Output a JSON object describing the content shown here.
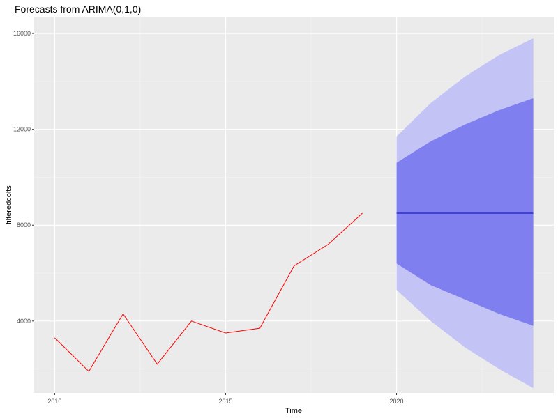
{
  "chart_data": {
    "type": "line",
    "title": "Forecasts from ARIMA(0,1,0)",
    "xlabel": "Time",
    "ylabel": "filteredcolts",
    "xlim": [
      2009.4,
      2024.6
    ],
    "ylim": [
      1000,
      16700
    ],
    "x_ticks": [
      2010,
      2015,
      2020
    ],
    "x_tick_labels": [
      "2010",
      "2015",
      "2020"
    ],
    "y_ticks": [
      4000,
      8000,
      12000,
      16000
    ],
    "y_tick_labels": [
      "4000",
      "8000",
      "12000",
      "16000"
    ],
    "grid": true,
    "background": "#ebebeb",
    "history": {
      "color": "#ff0000",
      "x": [
        2010,
        2011,
        2012,
        2013,
        2014,
        2015,
        2016,
        2017,
        2018,
        2019
      ],
      "y": [
        3300,
        1900,
        4300,
        2200,
        4000,
        3500,
        3700,
        6300,
        7200,
        8500
      ]
    },
    "forecast": {
      "color": "#0000cc",
      "x": [
        2020,
        2021,
        2022,
        2023,
        2024
      ],
      "mean": [
        8500,
        8500,
        8500,
        8500,
        8500
      ],
      "lower80": [
        6400,
        5500,
        4900,
        4300,
        3800
      ],
      "upper80": [
        10600,
        11500,
        12200,
        12800,
        13300
      ],
      "lower95": [
        5300,
        4000,
        2900,
        2000,
        1200
      ],
      "upper95": [
        11700,
        13100,
        14200,
        15100,
        15800
      ],
      "band80_color": "#7f7fef",
      "band95_color": "#c3c3f6"
    }
  }
}
